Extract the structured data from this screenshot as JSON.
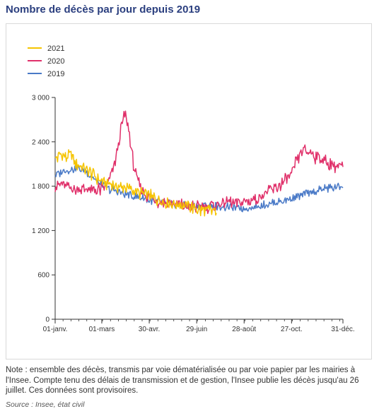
{
  "title": "Nombre de décès par jour depuis 2019",
  "note": "Note : ensemble des décès, transmis par voie dématérialisée ou par voie papier par les mairies à l'Insee. Compte tenu des délais de transmission et de gestion, l'Insee publie les décès jusqu'au 26 juillet. Ces données sont provisoires.",
  "source": "Source : Insee, état civil",
  "chart_data": {
    "type": "line",
    "title": "",
    "xlabel": "",
    "ylabel": "",
    "x_unit": "day of year",
    "xlim": [
      1,
      365
    ],
    "ylim": [
      0,
      3000
    ],
    "grid": false,
    "legend_position": "top-left",
    "y_ticks": [
      {
        "value": 0,
        "label": "0"
      },
      {
        "value": 600,
        "label": "600"
      },
      {
        "value": 1200,
        "label": "1 200"
      },
      {
        "value": 1800,
        "label": "1 800"
      },
      {
        "value": 2400,
        "label": "2 400"
      },
      {
        "value": 3000,
        "label": "3 000"
      }
    ],
    "x_ticks": [
      {
        "value": 1,
        "label": "01-janv."
      },
      {
        "value": 60,
        "label": "01-mars"
      },
      {
        "value": 120,
        "label": "30-avr."
      },
      {
        "value": 180,
        "label": "29-juin"
      },
      {
        "value": 240,
        "label": "28-août"
      },
      {
        "value": 300,
        "label": "27-oct."
      },
      {
        "value": 365,
        "label": "31-déc."
      }
    ],
    "series": [
      {
        "name": "2021",
        "color": "#f5c400",
        "x": [
          1,
          5,
          10,
          15,
          20,
          25,
          30,
          35,
          40,
          45,
          50,
          55,
          60,
          65,
          70,
          75,
          80,
          85,
          90,
          95,
          100,
          105,
          110,
          115,
          120,
          125,
          130,
          135,
          140,
          145,
          150,
          155,
          160,
          165,
          170,
          175,
          180,
          185,
          190,
          195,
          200,
          205
        ],
        "y": [
          2150,
          2200,
          2250,
          2180,
          2220,
          2150,
          2080,
          2050,
          2000,
          1980,
          1950,
          1900,
          1870,
          1850,
          1820,
          1810,
          1800,
          1790,
          1780,
          1760,
          1740,
          1720,
          1700,
          1690,
          1670,
          1650,
          1630,
          1610,
          1590,
          1580,
          1570,
          1560,
          1550,
          1540,
          1530,
          1500,
          1480,
          1470,
          1460,
          1470,
          1460,
          1470
        ]
      },
      {
        "name": "2020",
        "color": "#e0306a",
        "x": [
          1,
          10,
          20,
          30,
          40,
          50,
          60,
          65,
          70,
          75,
          80,
          85,
          88,
          90,
          92,
          95,
          98,
          100,
          103,
          106,
          110,
          115,
          120,
          130,
          140,
          150,
          160,
          170,
          180,
          190,
          200,
          210,
          220,
          230,
          240,
          250,
          260,
          270,
          280,
          290,
          300,
          305,
          310,
          313,
          315,
          320,
          325,
          330,
          335,
          340,
          345,
          350,
          355,
          360,
          365
        ],
        "y": [
          1800,
          1820,
          1780,
          1760,
          1750,
          1740,
          1760,
          1800,
          1900,
          2050,
          2300,
          2600,
          2780,
          2750,
          2650,
          2500,
          2250,
          2100,
          1950,
          1850,
          1780,
          1700,
          1650,
          1600,
          1580,
          1560,
          1540,
          1520,
          1520,
          1520,
          1540,
          1560,
          1580,
          1580,
          1590,
          1610,
          1650,
          1720,
          1780,
          1850,
          1950,
          2100,
          2220,
          2280,
          2300,
          2270,
          2250,
          2200,
          2180,
          2150,
          2120,
          2100,
          2080,
          2060,
          2050
        ]
      },
      {
        "name": "2019",
        "color": "#4a7ac7",
        "x": [
          1,
          10,
          20,
          30,
          40,
          50,
          60,
          70,
          80,
          90,
          100,
          110,
          120,
          130,
          140,
          150,
          160,
          170,
          180,
          190,
          200,
          210,
          220,
          230,
          240,
          250,
          260,
          270,
          280,
          290,
          300,
          310,
          320,
          330,
          340,
          350,
          360,
          365
        ],
        "y": [
          1950,
          2000,
          2020,
          2050,
          2000,
          1900,
          1820,
          1760,
          1720,
          1690,
          1660,
          1640,
          1610,
          1590,
          1570,
          1560,
          1550,
          1530,
          1520,
          1540,
          1530,
          1520,
          1510,
          1510,
          1500,
          1510,
          1530,
          1560,
          1580,
          1600,
          1630,
          1660,
          1700,
          1730,
          1760,
          1780,
          1790,
          1800
        ]
      }
    ]
  }
}
